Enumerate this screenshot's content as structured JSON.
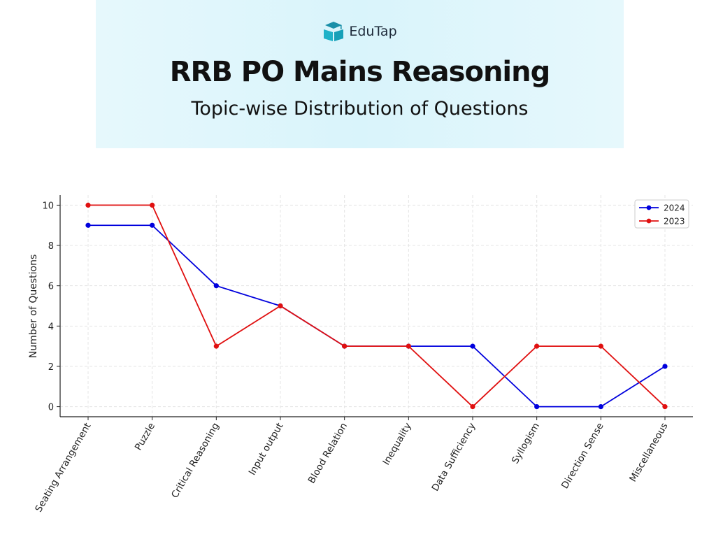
{
  "header": {
    "brand": "EduTap",
    "brand_icon": "graduation-book-icon",
    "title": "RRB PO Mains Reasoning",
    "subtitle": "Topic-wise Distribution of Questions"
  },
  "chart_data": {
    "type": "line",
    "categories": [
      "Seating Arrangement",
      "Puzzle",
      "Critical Reasoning",
      "Input output",
      "Blood Relation",
      "Inequality",
      "Data Sufficiency",
      "Syllogism",
      "Direction Sense",
      "Miscellaneous"
    ],
    "series": [
      {
        "name": "2024",
        "color": "#0000dd",
        "values": [
          9,
          9,
          6,
          5,
          3,
          3,
          3,
          0,
          0,
          2
        ]
      },
      {
        "name": "2023",
        "color": "#e01010",
        "values": [
          10,
          10,
          3,
          5,
          3,
          3,
          0,
          3,
          3,
          0
        ]
      }
    ],
    "ylabel": "Number of Questions",
    "xlabel": "",
    "ylim": [
      -0.5,
      10.5
    ],
    "yticks": [
      0,
      2,
      4,
      6,
      8,
      10
    ],
    "grid": true,
    "legend": "top-right"
  }
}
